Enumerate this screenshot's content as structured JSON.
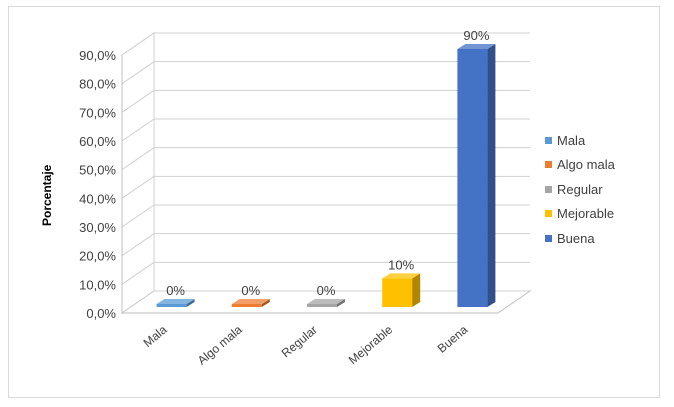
{
  "chart_data": {
    "type": "bar",
    "ylabel": "Porcentaje",
    "xlabel": "",
    "ylim": [
      0,
      90
    ],
    "yticks": [
      "0,0%",
      "10,0%",
      "20,0%",
      "30,0%",
      "40,0%",
      "50,0%",
      "60,0%",
      "70,0%",
      "80,0%",
      "90,0%"
    ],
    "categories": [
      "Mala",
      "Algo mala",
      "Regular",
      "Mejorable",
      "Buena"
    ],
    "values": [
      0,
      0,
      0,
      10,
      90
    ],
    "data_labels": [
      "0%",
      "0%",
      "0%",
      "10%",
      "90%"
    ],
    "colors": [
      "#5b9bd5",
      "#ed7d31",
      "#a5a5a5",
      "#ffc000",
      "#4472c4"
    ],
    "legend": [
      "Mala",
      "Algo mala",
      "Regular",
      "Mejorable",
      "Buena"
    ],
    "legend_position": "right",
    "grid": true,
    "style": "3d-column"
  }
}
